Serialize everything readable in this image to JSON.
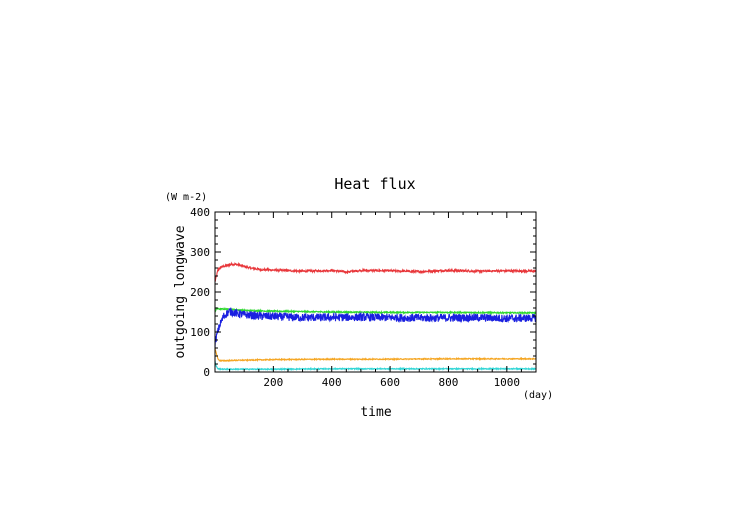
{
  "chart_data": {
    "type": "line",
    "title": "Heat flux",
    "ylabel": "outgoing longwave",
    "yunit": "(W m-2)",
    "xlabel": "time",
    "xunit": "(day)",
    "xlim": [
      0,
      1100
    ],
    "ylim": [
      0,
      400
    ],
    "xticks": [
      200,
      400,
      600,
      800,
      1000
    ],
    "yticks": [
      0,
      100,
      200,
      300,
      400
    ],
    "grid": false,
    "legend": "none",
    "series": [
      {
        "color": "#e8363a",
        "noise": 2.5,
        "points": [
          [
            0,
            225
          ],
          [
            10,
            255
          ],
          [
            20,
            262
          ],
          [
            40,
            266
          ],
          [
            60,
            270
          ],
          [
            80,
            268
          ],
          [
            120,
            260
          ],
          [
            160,
            256
          ],
          [
            200,
            255
          ],
          [
            300,
            252
          ],
          [
            400,
            254
          ],
          [
            450,
            250
          ],
          [
            500,
            254
          ],
          [
            600,
            253
          ],
          [
            700,
            251
          ],
          [
            800,
            254
          ],
          [
            900,
            252
          ],
          [
            1000,
            253
          ],
          [
            1100,
            252
          ]
        ]
      },
      {
        "color": "#2fd82f",
        "noise": 1.5,
        "points": [
          [
            0,
            150
          ],
          [
            5,
            158
          ],
          [
            50,
            157
          ],
          [
            100,
            154
          ],
          [
            200,
            152
          ],
          [
            400,
            150
          ],
          [
            600,
            149
          ],
          [
            800,
            149
          ],
          [
            1000,
            148
          ],
          [
            1100,
            148
          ]
        ]
      },
      {
        "color": "#1a20e0",
        "noise": 10,
        "points": [
          [
            0,
            70
          ],
          [
            5,
            88
          ],
          [
            15,
            115
          ],
          [
            30,
            140
          ],
          [
            50,
            152
          ],
          [
            80,
            145
          ],
          [
            150,
            140
          ],
          [
            300,
            136
          ],
          [
            500,
            137
          ],
          [
            700,
            135
          ],
          [
            900,
            136
          ],
          [
            1000,
            134
          ],
          [
            1100,
            135
          ]
        ]
      },
      {
        "color": "#f5a623",
        "noise": 1.2,
        "points": [
          [
            0,
            60
          ],
          [
            5,
            45
          ],
          [
            12,
            30
          ],
          [
            20,
            28
          ],
          [
            60,
            29
          ],
          [
            200,
            31
          ],
          [
            400,
            32
          ],
          [
            600,
            32
          ],
          [
            800,
            33
          ],
          [
            1000,
            33
          ],
          [
            1100,
            33
          ]
        ]
      },
      {
        "color": "#33d6d6",
        "noise": 1.2,
        "points": [
          [
            0,
            28
          ],
          [
            4,
            15
          ],
          [
            10,
            8
          ],
          [
            30,
            7
          ],
          [
            200,
            7
          ],
          [
            400,
            8
          ],
          [
            600,
            8
          ],
          [
            800,
            8
          ],
          [
            1000,
            8
          ],
          [
            1100,
            8
          ]
        ]
      }
    ]
  }
}
